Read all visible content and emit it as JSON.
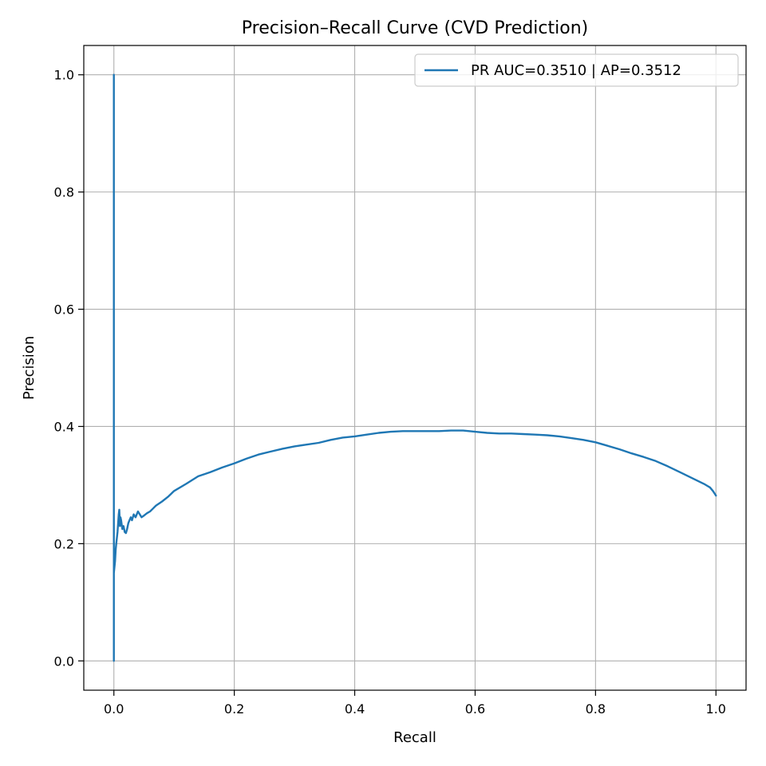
{
  "chart_data": {
    "type": "line",
    "title": "Precision–Recall Curve (CVD Prediction)",
    "xlabel": "Recall",
    "ylabel": "Precision",
    "xlim": [
      -0.05,
      1.05
    ],
    "ylim": [
      -0.05,
      1.05
    ],
    "x_ticks": [
      0.0,
      0.2,
      0.4,
      0.6,
      0.8,
      1.0
    ],
    "x_tick_labels": [
      "0.0",
      "0.2",
      "0.4",
      "0.6",
      "0.8",
      "1.0"
    ],
    "y_ticks": [
      0.0,
      0.2,
      0.4,
      0.6,
      0.8,
      1.0
    ],
    "y_tick_labels": [
      "0.0",
      "0.2",
      "0.4",
      "0.6",
      "0.8",
      "1.0"
    ],
    "grid": true,
    "legend_position": "top-right",
    "series": [
      {
        "name": "PR AUC=0.3510 | AP=0.3512",
        "color": "#1f77b4",
        "x": [
          0.0,
          0.0,
          0.0,
          0.0,
          0.002,
          0.003,
          0.004,
          0.006,
          0.008,
          0.009,
          0.01,
          0.011,
          0.012,
          0.014,
          0.016,
          0.018,
          0.02,
          0.022,
          0.024,
          0.026,
          0.028,
          0.03,
          0.033,
          0.036,
          0.04,
          0.043,
          0.046,
          0.05,
          0.055,
          0.06,
          0.065,
          0.07,
          0.08,
          0.09,
          0.1,
          0.12,
          0.14,
          0.16,
          0.18,
          0.2,
          0.22,
          0.24,
          0.26,
          0.28,
          0.3,
          0.32,
          0.34,
          0.36,
          0.38,
          0.4,
          0.42,
          0.44,
          0.46,
          0.48,
          0.5,
          0.52,
          0.54,
          0.56,
          0.58,
          0.6,
          0.62,
          0.64,
          0.66,
          0.68,
          0.7,
          0.72,
          0.74,
          0.76,
          0.78,
          0.8,
          0.82,
          0.84,
          0.86,
          0.88,
          0.9,
          0.92,
          0.94,
          0.96,
          0.98,
          0.99,
          0.995,
          1.0
        ],
        "y": [
          1.0,
          0.0,
          0.12,
          0.15,
          0.17,
          0.19,
          0.2,
          0.22,
          0.25,
          0.258,
          0.23,
          0.245,
          0.24,
          0.225,
          0.23,
          0.22,
          0.218,
          0.225,
          0.235,
          0.24,
          0.245,
          0.24,
          0.25,
          0.245,
          0.255,
          0.25,
          0.245,
          0.248,
          0.252,
          0.255,
          0.26,
          0.265,
          0.272,
          0.28,
          0.29,
          0.302,
          0.315,
          0.322,
          0.33,
          0.337,
          0.345,
          0.352,
          0.357,
          0.362,
          0.366,
          0.369,
          0.372,
          0.377,
          0.381,
          0.383,
          0.386,
          0.389,
          0.391,
          0.392,
          0.392,
          0.392,
          0.392,
          0.393,
          0.393,
          0.391,
          0.389,
          0.388,
          0.388,
          0.387,
          0.386,
          0.385,
          0.383,
          0.38,
          0.377,
          0.373,
          0.367,
          0.361,
          0.354,
          0.348,
          0.341,
          0.332,
          0.322,
          0.312,
          0.302,
          0.296,
          0.29,
          0.282
        ]
      }
    ]
  }
}
